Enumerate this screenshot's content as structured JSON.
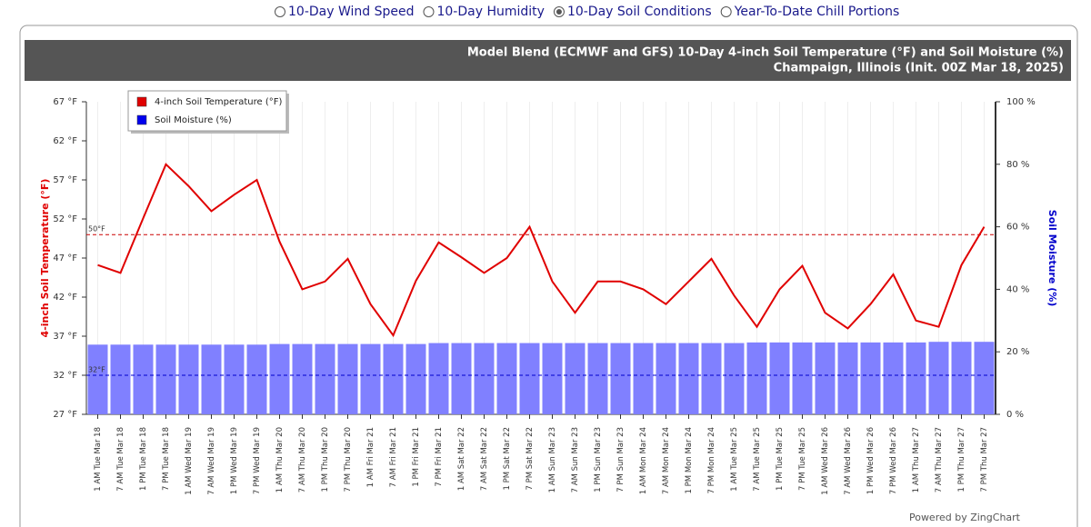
{
  "chart_data": {
    "type": "line_bar",
    "radio_options": [
      "10-Day Wind Speed",
      "10-Day Humidity",
      "10-Day Soil Conditions",
      "Year-To-Date Chill Portions"
    ],
    "radio_selected": 2,
    "title": "Model Blend (ECMWF and GFS) 10-Day 4-inch Soil Temperature (°F) and Soil Moisture (%)",
    "subtitle": "Champaign, Illinois (Init. 00Z Mar 18, 2025)",
    "ylabel": "4-inch Soil Temperature (°F)",
    "y2label": "Soil Moisture (%)",
    "footer": "Powered by ZingChart",
    "categories": [
      "1 AM Tue Mar 18",
      "7 AM Tue Mar 18",
      "1 PM Tue Mar 18",
      "7 PM Tue Mar 18",
      "1 AM Wed Mar 19",
      "7 AM Wed Mar 19",
      "1 PM Wed Mar 19",
      "7 PM Wed Mar 19",
      "1 AM Thu Mar 20",
      "7 AM Thu Mar 20",
      "1 PM Thu Mar 20",
      "7 PM Thu Mar 20",
      "1 AM Fri Mar 21",
      "7 AM Fri Mar 21",
      "1 PM Fri Mar 21",
      "7 PM Fri Mar 21",
      "1 AM Sat Mar 22",
      "7 AM Sat Mar 22",
      "1 PM Sat Mar 22",
      "7 PM Sat Mar 22",
      "1 AM Sun Mar 23",
      "7 AM Sun Mar 23",
      "1 PM Sun Mar 23",
      "7 PM Sun Mar 23",
      "1 AM Mon Mar 24",
      "7 AM Mon Mar 24",
      "1 PM Mon Mar 24",
      "7 PM Mon Mar 24",
      "1 AM Tue Mar 25",
      "7 AM Tue Mar 25",
      "1 PM Tue Mar 25",
      "7 PM Tue Mar 25",
      "1 AM Wed Mar 26",
      "7 AM Wed Mar 26",
      "1 PM Wed Mar 26",
      "7 PM Wed Mar 26",
      "1 AM Thu Mar 27",
      "7 AM Thu Mar 27",
      "1 PM Thu Mar 27",
      "7 PM Thu Mar 27"
    ],
    "series": [
      {
        "name": "4-inch Soil Temperature (°F)",
        "color": "#e00000",
        "kind": "line",
        "values": [
          46.1,
          45.1,
          52.1,
          59.0,
          56.2,
          53.0,
          55.1,
          57.0,
          49.1,
          43.0,
          44.0,
          46.9,
          41.1,
          37.1,
          44.1,
          49.0,
          47.1,
          45.1,
          47.0,
          51.0,
          44.0,
          40.0,
          44.0,
          44.0,
          43.0,
          41.1,
          44.0,
          46.9,
          42.2,
          38.2,
          43.0,
          46.0,
          40.0,
          38.0,
          41.1,
          44.9,
          39.0,
          38.2,
          46.1,
          51.0
        ]
      },
      {
        "name": "Soil Moisture (%)",
        "color": "#0000ee",
        "bar_color": "#8080ff",
        "kind": "bar",
        "axis": "y2",
        "values": [
          22.3,
          22.3,
          22.3,
          22.3,
          22.3,
          22.3,
          22.3,
          22.3,
          22.5,
          22.5,
          22.5,
          22.5,
          22.5,
          22.5,
          22.5,
          22.8,
          22.8,
          22.8,
          22.8,
          22.8,
          22.8,
          22.8,
          22.8,
          22.8,
          22.8,
          22.8,
          22.8,
          22.8,
          22.8,
          23.0,
          23.0,
          23.0,
          23.0,
          23.0,
          23.0,
          23.0,
          23.0,
          23.2,
          23.2,
          23.2
        ]
      }
    ],
    "ylim": [
      27,
      67
    ],
    "yticks": [
      {
        "value": 27,
        "label": "27 °F"
      },
      {
        "value": 32,
        "label": "32 °F"
      },
      {
        "value": 37,
        "label": "37 °F"
      },
      {
        "value": 42,
        "label": "42 °F"
      },
      {
        "value": 47,
        "label": "47 °F"
      },
      {
        "value": 52,
        "label": "52 °F"
      },
      {
        "value": 57,
        "label": "57 °F"
      },
      {
        "value": 62,
        "label": "62 °F"
      },
      {
        "value": 67,
        "label": "67 °F"
      }
    ],
    "y2lim": [
      0,
      100
    ],
    "y2ticks": [
      {
        "value": 0,
        "label": "0 %"
      },
      {
        "value": 20,
        "label": "20 %"
      },
      {
        "value": 40,
        "label": "40 %"
      },
      {
        "value": 60,
        "label": "60 %"
      },
      {
        "value": 80,
        "label": "80 %"
      },
      {
        "value": 100,
        "label": "100 %"
      }
    ],
    "reference_lines": [
      {
        "value": 50,
        "label": "50°F",
        "color": "#cc0000"
      },
      {
        "value": 32,
        "label": "32°F",
        "color": "#0000cc"
      }
    ],
    "grid": true
  }
}
